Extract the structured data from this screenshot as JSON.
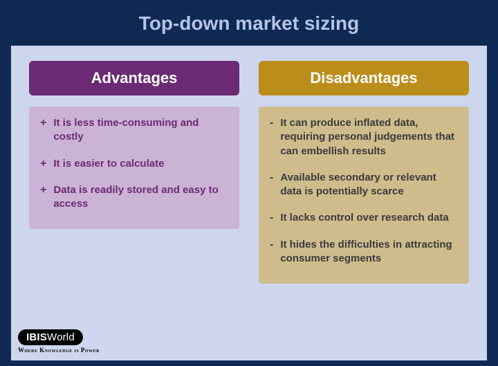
{
  "title": "Top-down market sizing",
  "colors": {
    "frame_bg": "#0e2a53",
    "panel_bg": "#cdd6ee",
    "title_color": "#b6c5e4",
    "adv_header_bg": "#6b2a73",
    "adv_body_bg": "#cbb3d5",
    "adv_text": "#6b2a73",
    "dis_header_bg": "#bb8e1c",
    "dis_body_bg": "#cfbc8d",
    "dis_text": "#3a3a3a"
  },
  "advantages": {
    "header": "Advantages",
    "bullet": "+",
    "items": [
      "It is less time-consuming and costly",
      "It is easier to calculate",
      "Data is readily stored and easy to access"
    ]
  },
  "disadvantages": {
    "header": "Disadvantages",
    "bullet": "-",
    "items": [
      "It can produce inflated data, requiring personal judgements that can embellish results",
      "Available secondary or relevant data is potentially scarce",
      "It lacks control over research data",
      "It hides the difficulties in attracting consumer segments"
    ]
  },
  "logo": {
    "brand_bold": "IBIS",
    "brand_light": "World",
    "tagline": "Where Knowledge is Power"
  }
}
